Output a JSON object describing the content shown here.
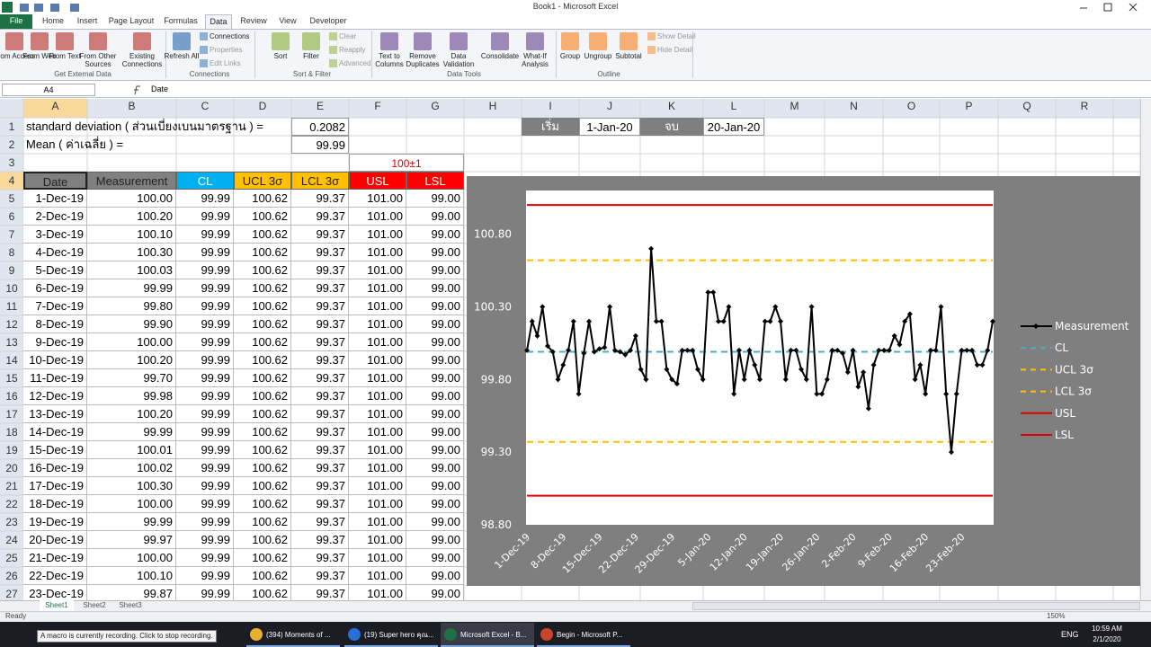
{
  "window": {
    "title": "Book1 - Microsoft Excel"
  },
  "ribbon": {
    "tabs": [
      "File",
      "Home",
      "Insert",
      "Page Layout",
      "Formulas",
      "Data",
      "Review",
      "View",
      "Developer"
    ],
    "groups": [
      {
        "label": "Get External Data",
        "buttons": [
          "From Access",
          "From Web",
          "From Text",
          "From Other Sources",
          "Existing Connections"
        ]
      },
      {
        "label": "Connections",
        "buttons": [
          "Refresh All",
          "Connections",
          "Properties",
          "Edit Links"
        ]
      },
      {
        "label": "Sort & Filter",
        "buttons": [
          "Sort",
          "Filter",
          "Clear",
          "Reapply",
          "Advanced"
        ]
      },
      {
        "label": "Data Tools",
        "buttons": [
          "Text to Columns",
          "Remove Duplicates",
          "Data Validation",
          "Consolidate",
          "What-If Analysis"
        ]
      },
      {
        "label": "Outline",
        "buttons": [
          "Group",
          "Ungroup",
          "Subtotal",
          "Show Detail",
          "Hide Detail"
        ]
      }
    ]
  },
  "formula_bar": {
    "name_box": "A4",
    "formula": "Date"
  },
  "sheet": {
    "columns": [
      "A",
      "B",
      "C",
      "D",
      "E",
      "F",
      "G",
      "H",
      "I",
      "J",
      "K",
      "L",
      "M",
      "N",
      "O",
      "P",
      "Q",
      "R"
    ],
    "rows": [
      1,
      2,
      3,
      4,
      5,
      6,
      7,
      8,
      9,
      10,
      11,
      12,
      13,
      14,
      15,
      16,
      17,
      18,
      19,
      20,
      21,
      22,
      23,
      24,
      25,
      26,
      27
    ],
    "std_label": "standard deviation ( ส่วนเบี่ยงเบนมาตรฐาน ) =",
    "std_value": "0.2082",
    "mean_label": "Mean ( ค่าเฉลี่ย ) =",
    "mean_value": "99.99",
    "start_label": "เริ่ม",
    "start_date": "1-Jan-20",
    "end_label": "จบ",
    "end_date": "20-Jan-20",
    "spec": "100±1",
    "table": {
      "header": [
        "Date",
        "Measurement",
        "CL",
        "UCL 3σ",
        "LCL 3σ",
        "USL",
        "LSL"
      ],
      "rows": [
        [
          "1-Dec-19",
          "100.00",
          "99.99",
          "100.62",
          "99.37",
          "101.00",
          "99.00"
        ],
        [
          "2-Dec-19",
          "100.20",
          "99.99",
          "100.62",
          "99.37",
          "101.00",
          "99.00"
        ],
        [
          "3-Dec-19",
          "100.10",
          "99.99",
          "100.62",
          "99.37",
          "101.00",
          "99.00"
        ],
        [
          "4-Dec-19",
          "100.30",
          "99.99",
          "100.62",
          "99.37",
          "101.00",
          "99.00"
        ],
        [
          "5-Dec-19",
          "100.03",
          "99.99",
          "100.62",
          "99.37",
          "101.00",
          "99.00"
        ],
        [
          "6-Dec-19",
          "99.99",
          "99.99",
          "100.62",
          "99.37",
          "101.00",
          "99.00"
        ],
        [
          "7-Dec-19",
          "99.80",
          "99.99",
          "100.62",
          "99.37",
          "101.00",
          "99.00"
        ],
        [
          "8-Dec-19",
          "99.90",
          "99.99",
          "100.62",
          "99.37",
          "101.00",
          "99.00"
        ],
        [
          "9-Dec-19",
          "100.00",
          "99.99",
          "100.62",
          "99.37",
          "101.00",
          "99.00"
        ],
        [
          "10-Dec-19",
          "100.20",
          "99.99",
          "100.62",
          "99.37",
          "101.00",
          "99.00"
        ],
        [
          "11-Dec-19",
          "99.70",
          "99.99",
          "100.62",
          "99.37",
          "101.00",
          "99.00"
        ],
        [
          "12-Dec-19",
          "99.98",
          "99.99",
          "100.62",
          "99.37",
          "101.00",
          "99.00"
        ],
        [
          "13-Dec-19",
          "100.20",
          "99.99",
          "100.62",
          "99.37",
          "101.00",
          "99.00"
        ],
        [
          "14-Dec-19",
          "99.99",
          "99.99",
          "100.62",
          "99.37",
          "101.00",
          "99.00"
        ],
        [
          "15-Dec-19",
          "100.01",
          "99.99",
          "100.62",
          "99.37",
          "101.00",
          "99.00"
        ],
        [
          "16-Dec-19",
          "100.02",
          "99.99",
          "100.62",
          "99.37",
          "101.00",
          "99.00"
        ],
        [
          "17-Dec-19",
          "100.30",
          "99.99",
          "100.62",
          "99.37",
          "101.00",
          "99.00"
        ],
        [
          "18-Dec-19",
          "100.00",
          "99.99",
          "100.62",
          "99.37",
          "101.00",
          "99.00"
        ],
        [
          "19-Dec-19",
          "99.99",
          "99.99",
          "100.62",
          "99.37",
          "101.00",
          "99.00"
        ],
        [
          "20-Dec-19",
          "99.97",
          "99.99",
          "100.62",
          "99.37",
          "101.00",
          "99.00"
        ],
        [
          "21-Dec-19",
          "100.00",
          "99.99",
          "100.62",
          "99.37",
          "101.00",
          "99.00"
        ],
        [
          "22-Dec-19",
          "100.10",
          "99.99",
          "100.62",
          "99.37",
          "101.00",
          "99.00"
        ],
        [
          "23-Dec-19",
          "99.87",
          "99.99",
          "100.62",
          "99.37",
          "101.00",
          "99.00"
        ]
      ]
    },
    "tabs": [
      "Sheet1",
      "Sheet2",
      "Sheet3"
    ]
  },
  "chart_data": {
    "type": "line",
    "legend": "right",
    "marker": "diamond",
    "categories": [
      "1-Dec-19",
      null,
      null,
      null,
      null,
      null,
      null,
      "8-Dec-19",
      null,
      null,
      null,
      null,
      null,
      null,
      "15-Dec-19",
      null,
      null,
      null,
      null,
      null,
      null,
      "22-Dec-19",
      null,
      null,
      null,
      null,
      null,
      null,
      "29-Dec-19",
      null,
      null,
      null,
      null,
      null,
      null,
      "5-Jan-20",
      null,
      null,
      null,
      null,
      null,
      null,
      "12-Jan-20",
      null,
      null,
      null,
      null,
      null,
      null,
      "19-Jan-20",
      null,
      null,
      null,
      null,
      null,
      null,
      "26-Jan-20",
      null,
      null,
      null,
      null,
      null,
      null,
      "2-Feb-20",
      null,
      null,
      null,
      null,
      null,
      null,
      "9-Feb-20",
      null,
      null,
      null,
      null,
      null,
      null,
      "16-Feb-20",
      null,
      null,
      null,
      null,
      null,
      null,
      "23-Feb-20",
      null,
      null,
      null,
      null,
      null,
      null
    ],
    "ylim": [
      98.8,
      101.1
    ],
    "yticks": [
      {
        "value": 98.8,
        "label": "98.80"
      },
      {
        "value": 99.3,
        "label": "99.30"
      },
      {
        "value": 99.8,
        "label": "99.80"
      },
      {
        "value": 100.3,
        "label": "100.30"
      },
      {
        "value": 100.8,
        "label": "100.80"
      }
    ],
    "series": [
      {
        "name": "Measurement",
        "color": "#000000",
        "line_style": "solid",
        "values": [
          100.0,
          100.2,
          100.1,
          100.3,
          100.03,
          99.99,
          99.8,
          99.9,
          100.0,
          100.2,
          99.7,
          99.98,
          100.2,
          99.99,
          100.01,
          100.02,
          100.3,
          100.0,
          99.99,
          99.97,
          100.0,
          100.1,
          99.87,
          99.8,
          100.7,
          100.2,
          100.2,
          99.87,
          99.8,
          99.77,
          100.0,
          100.0,
          100.0,
          99.87,
          99.8,
          100.4,
          100.4,
          100.2,
          100.2,
          100.3,
          99.7,
          100.0,
          99.8,
          100.0,
          99.9,
          99.8,
          100.2,
          100.2,
          100.3,
          100.2,
          99.8,
          100.0,
          100.0,
          99.87,
          99.8,
          100.3,
          99.7,
          99.7,
          99.8,
          100.0,
          100.0,
          99.98,
          99.85,
          100.0,
          99.75,
          99.85,
          99.6,
          99.9,
          100.0,
          100.0,
          100.0,
          100.1,
          100.04,
          100.2,
          100.25,
          99.8,
          99.9,
          99.7,
          100.0,
          100.0,
          100.3,
          99.7,
          99.3,
          99.7,
          100.0,
          100.0,
          100.0,
          99.9,
          99.9,
          100.0,
          100.2
        ]
      },
      {
        "name": "CL",
        "color": "#4bacc6",
        "line_style": "dashed",
        "values": [
          99.99,
          99.99,
          99.99,
          99.99,
          99.99,
          99.99,
          99.99,
          99.99,
          99.99,
          99.99,
          99.99,
          99.99,
          99.99,
          99.99,
          99.99,
          99.99,
          99.99,
          99.99,
          99.99,
          99.99,
          99.99,
          99.99,
          99.99,
          99.99,
          99.99,
          99.99,
          99.99,
          99.99,
          99.99,
          99.99,
          99.99,
          99.99,
          99.99,
          99.99,
          99.99,
          99.99,
          99.99,
          99.99,
          99.99,
          99.99,
          99.99,
          99.99,
          99.99,
          99.99,
          99.99,
          99.99,
          99.99,
          99.99,
          99.99,
          99.99,
          99.99,
          99.99,
          99.99,
          99.99,
          99.99,
          99.99,
          99.99,
          99.99,
          99.99,
          99.99,
          99.99,
          99.99,
          99.99,
          99.99,
          99.99,
          99.99,
          99.99,
          99.99,
          99.99,
          99.99,
          99.99,
          99.99,
          99.99,
          99.99,
          99.99,
          99.99,
          99.99,
          99.99,
          99.99,
          99.99,
          99.99,
          99.99,
          99.99,
          99.99,
          99.99,
          99.99,
          99.99,
          99.99,
          99.99,
          99.99,
          99.99
        ]
      },
      {
        "name": "UCL 3σ",
        "color": "#ffc000",
        "line_style": "dashed",
        "values": [
          100.62,
          100.62,
          100.62,
          100.62,
          100.62,
          100.62,
          100.62,
          100.62,
          100.62,
          100.62,
          100.62,
          100.62,
          100.62,
          100.62,
          100.62,
          100.62,
          100.62,
          100.62,
          100.62,
          100.62,
          100.62,
          100.62,
          100.62,
          100.62,
          100.62,
          100.62,
          100.62,
          100.62,
          100.62,
          100.62,
          100.62,
          100.62,
          100.62,
          100.62,
          100.62,
          100.62,
          100.62,
          100.62,
          100.62,
          100.62,
          100.62,
          100.62,
          100.62,
          100.62,
          100.62,
          100.62,
          100.62,
          100.62,
          100.62,
          100.62,
          100.62,
          100.62,
          100.62,
          100.62,
          100.62,
          100.62,
          100.62,
          100.62,
          100.62,
          100.62,
          100.62,
          100.62,
          100.62,
          100.62,
          100.62,
          100.62,
          100.62,
          100.62,
          100.62,
          100.62,
          100.62,
          100.62,
          100.62,
          100.62,
          100.62,
          100.62,
          100.62,
          100.62,
          100.62,
          100.62,
          100.62,
          100.62,
          100.62,
          100.62,
          100.62,
          100.62,
          100.62,
          100.62,
          100.62,
          100.62,
          100.62
        ]
      },
      {
        "name": "LCL 3σ",
        "color": "#ffc000",
        "line_style": "dashed",
        "values": [
          99.37,
          99.37,
          99.37,
          99.37,
          99.37,
          99.37,
          99.37,
          99.37,
          99.37,
          99.37,
          99.37,
          99.37,
          99.37,
          99.37,
          99.37,
          99.37,
          99.37,
          99.37,
          99.37,
          99.37,
          99.37,
          99.37,
          99.37,
          99.37,
          99.37,
          99.37,
          99.37,
          99.37,
          99.37,
          99.37,
          99.37,
          99.37,
          99.37,
          99.37,
          99.37,
          99.37,
          99.37,
          99.37,
          99.37,
          99.37,
          99.37,
          99.37,
          99.37,
          99.37,
          99.37,
          99.37,
          99.37,
          99.37,
          99.37,
          99.37,
          99.37,
          99.37,
          99.37,
          99.37,
          99.37,
          99.37,
          99.37,
          99.37,
          99.37,
          99.37,
          99.37,
          99.37,
          99.37,
          99.37,
          99.37,
          99.37,
          99.37,
          99.37,
          99.37,
          99.37,
          99.37,
          99.37,
          99.37,
          99.37,
          99.37,
          99.37,
          99.37,
          99.37,
          99.37,
          99.37,
          99.37,
          99.37,
          99.37,
          99.37,
          99.37,
          99.37,
          99.37,
          99.37,
          99.37,
          99.37,
          99.37
        ]
      },
      {
        "name": "USL",
        "color": "#e00000",
        "line_style": "solid",
        "values": [
          101,
          101,
          101,
          101,
          101,
          101,
          101,
          101,
          101,
          101,
          101,
          101,
          101,
          101,
          101,
          101,
          101,
          101,
          101,
          101,
          101,
          101,
          101,
          101,
          101,
          101,
          101,
          101,
          101,
          101,
          101,
          101,
          101,
          101,
          101,
          101,
          101,
          101,
          101,
          101,
          101,
          101,
          101,
          101,
          101,
          101,
          101,
          101,
          101,
          101,
          101,
          101,
          101,
          101,
          101,
          101,
          101,
          101,
          101,
          101,
          101,
          101,
          101,
          101,
          101,
          101,
          101,
          101,
          101,
          101,
          101,
          101,
          101,
          101,
          101,
          101,
          101,
          101,
          101,
          101,
          101,
          101,
          101,
          101,
          101,
          101,
          101,
          101,
          101,
          101,
          101
        ]
      },
      {
        "name": "LSL",
        "color": "#e00000",
        "line_style": "solid",
        "values": [
          99,
          99,
          99,
          99,
          99,
          99,
          99,
          99,
          99,
          99,
          99,
          99,
          99,
          99,
          99,
          99,
          99,
          99,
          99,
          99,
          99,
          99,
          99,
          99,
          99,
          99,
          99,
          99,
          99,
          99,
          99,
          99,
          99,
          99,
          99,
          99,
          99,
          99,
          99,
          99,
          99,
          99,
          99,
          99,
          99,
          99,
          99,
          99,
          99,
          99,
          99,
          99,
          99,
          99,
          99,
          99,
          99,
          99,
          99,
          99,
          99,
          99,
          99,
          99,
          99,
          99,
          99,
          99,
          99,
          99,
          99,
          99,
          99,
          99,
          99,
          99,
          99,
          99,
          99,
          99,
          99,
          99,
          99,
          99,
          99,
          99,
          99,
          99,
          99,
          99,
          99
        ]
      }
    ]
  },
  "status": {
    "left": "Ready",
    "zoom": "150%"
  },
  "taskbar": {
    "tooltip": "A macro is currently recording. Click to stop recording.",
    "items": [
      "(394) Moments of ...",
      "(19) Super hero คุณ...",
      "Microsoft Excel - B...",
      "Begin - Microsoft P..."
    ],
    "lang": "ENG",
    "time": "10:59 AM",
    "date": "2/1/2020"
  }
}
